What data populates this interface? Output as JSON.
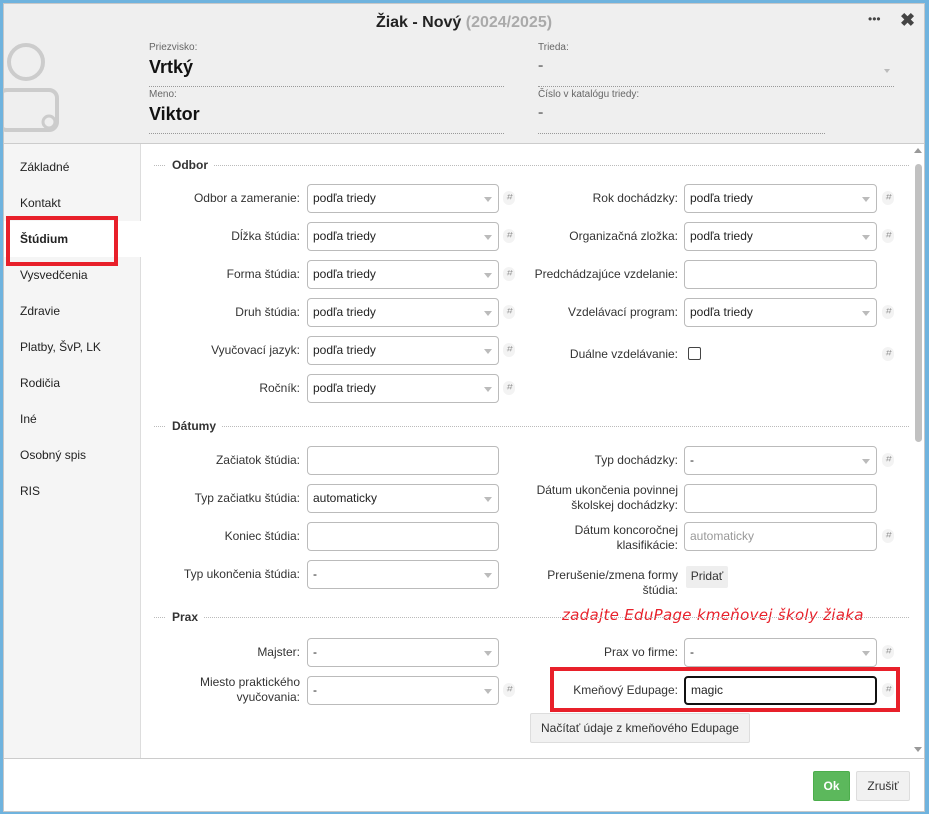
{
  "window": {
    "title": "Žiak - Nový",
    "year": "(2024/2025)",
    "more_icon": "ellipsis-icon",
    "close_icon": "close-icon"
  },
  "header": {
    "surname_label": "Priezvisko:",
    "surname": "Vrtký",
    "name_label": "Meno:",
    "name": "Viktor",
    "class_label": "Trieda:",
    "class_value": "-",
    "catalog_label": "Číslo v katalógu triedy:",
    "catalog_value": "-"
  },
  "sidebar": {
    "items": [
      {
        "label": "Základné"
      },
      {
        "label": "Kontakt"
      },
      {
        "label": "Štúdium",
        "active": true
      },
      {
        "label": "Vysvedčenia"
      },
      {
        "label": "Zdravie"
      },
      {
        "label": "Platby, ŠvP, LK"
      },
      {
        "label": "Rodičia"
      },
      {
        "label": "Iné"
      },
      {
        "label": "Osobný spis"
      },
      {
        "label": "RIS"
      }
    ]
  },
  "sections": {
    "odbor": "Odbor",
    "datumy": "Dátumy",
    "prax": "Prax"
  },
  "odbor_left": [
    {
      "label": "Odbor a zameranie:",
      "value": "podľa triedy"
    },
    {
      "label": "Dĺžka štúdia:",
      "value": "podľa triedy"
    },
    {
      "label": "Forma štúdia:",
      "value": "podľa triedy"
    },
    {
      "label": "Druh štúdia:",
      "value": "podľa triedy"
    },
    {
      "label": "Vyučovací jazyk:",
      "value": "podľa triedy"
    },
    {
      "label": "Ročník:",
      "value": "podľa triedy"
    }
  ],
  "odbor_right": [
    {
      "label": "Rok dochádzky:",
      "value": "podľa triedy"
    },
    {
      "label": "Organizačná zložka:",
      "value": "podľa triedy"
    },
    {
      "label": "Predchádzajúce vzdelanie:",
      "value": ""
    },
    {
      "label": "Vzdelávací program:",
      "value": "podľa triedy"
    },
    {
      "label": "Duálne vzdelávanie:",
      "checked": false
    }
  ],
  "datumy_left": [
    {
      "label": "Začiatok štúdia:",
      "value": ""
    },
    {
      "label": "Typ začiatku štúdia:",
      "value": "automaticky"
    },
    {
      "label": "Koniec štúdia:",
      "value": ""
    },
    {
      "label": "Typ ukončenia štúdia:",
      "value": "-"
    }
  ],
  "datumy_right": [
    {
      "label": "Typ dochádzky:",
      "value": "-"
    },
    {
      "label": "Dátum ukončenia povinnej školskej dochádzky:",
      "value": ""
    },
    {
      "label": "Dátum koncoročnej klasifikácie:",
      "placeholder": "automaticky"
    },
    {
      "label": "Prerušenie/zmena formy štúdia:",
      "button": "Pridať"
    }
  ],
  "prax_left": [
    {
      "label": "Majster:",
      "value": "-"
    },
    {
      "label": "Miesto praktického vyučovania:",
      "value": "-"
    }
  ],
  "prax_right": [
    {
      "label": "Prax vo firme:",
      "value": "-"
    },
    {
      "label": "Kmeňový Edupage:",
      "value": "magic"
    }
  ],
  "load_button": "Načítať údaje z kmeňového Edupage",
  "annotation": "zadajte EduPage kmeňovej školy žiaka",
  "hash_symbol": "⌗",
  "footer": {
    "ok": "Ok",
    "cancel": "Zrušiť"
  },
  "colors": {
    "highlight": "#e8202a",
    "ok": "#5cb85c"
  }
}
